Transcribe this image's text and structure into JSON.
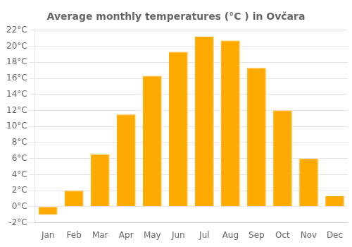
{
  "chart_data": {
    "type": "bar",
    "title": "Average monthly temperatures (°C ) in Ovčara",
    "categories": [
      "Jan",
      "Feb",
      "Mar",
      "Apr",
      "May",
      "Jun",
      "Jul",
      "Aug",
      "Sep",
      "Oct",
      "Nov",
      "Dec"
    ],
    "values": [
      -1.0,
      2.0,
      6.5,
      11.5,
      16.3,
      19.3,
      21.2,
      20.7,
      17.3,
      12.0,
      6.0,
      1.3
    ],
    "color": "#FFAA00",
    "ylim": [
      -2,
      22
    ],
    "yticks": [
      {
        "value": -2,
        "label": "-2°C"
      },
      {
        "value": 0,
        "label": "0°C"
      },
      {
        "value": 2,
        "label": "2°C"
      },
      {
        "value": 4,
        "label": "4°C"
      },
      {
        "value": 6,
        "label": "6°C"
      },
      {
        "value": 8,
        "label": "8°C"
      },
      {
        "value": 10,
        "label": "10°C"
      },
      {
        "value": 12,
        "label": "12°C"
      },
      {
        "value": 14,
        "label": "14°C"
      },
      {
        "value": 16,
        "label": "16°C"
      },
      {
        "value": 18,
        "label": "18°C"
      },
      {
        "value": 20,
        "label": "20°C"
      },
      {
        "value": 22,
        "label": "22°C"
      }
    ],
    "grid": true
  }
}
